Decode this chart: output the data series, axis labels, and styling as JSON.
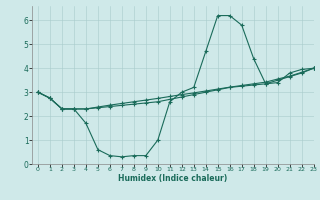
{
  "xlabel": "Humidex (Indice chaleur)",
  "ylabel": "",
  "bg_color": "#cfe9e9",
  "line_color": "#1a6b5a",
  "xlim": [
    -0.5,
    23
  ],
  "ylim": [
    0,
    6.6
  ],
  "xticks": [
    0,
    1,
    2,
    3,
    4,
    5,
    6,
    7,
    8,
    9,
    10,
    11,
    12,
    13,
    14,
    15,
    16,
    17,
    18,
    19,
    20,
    21,
    22,
    23
  ],
  "yticks": [
    0,
    1,
    2,
    3,
    4,
    5,
    6
  ],
  "series1_x": [
    0,
    1,
    2,
    3,
    4,
    5,
    6,
    7,
    8,
    9,
    10,
    11,
    12,
    13,
    14,
    15,
    16,
    17,
    18,
    19,
    20,
    21,
    22,
    23
  ],
  "series1_y": [
    3.0,
    2.75,
    2.3,
    2.3,
    1.7,
    0.6,
    0.35,
    0.3,
    0.35,
    0.35,
    1.0,
    2.6,
    3.0,
    3.2,
    4.7,
    6.2,
    6.2,
    5.8,
    4.4,
    3.35,
    3.4,
    3.8,
    3.95,
    4.0
  ],
  "series2_x": [
    0,
    1,
    2,
    3,
    4,
    5,
    6,
    7,
    8,
    9,
    10,
    11,
    12,
    13,
    14,
    15,
    16,
    17,
    18,
    19,
    20,
    21,
    22,
    23
  ],
  "series2_y": [
    3.0,
    2.75,
    2.3,
    2.3,
    2.3,
    2.35,
    2.4,
    2.45,
    2.5,
    2.55,
    2.6,
    2.7,
    2.8,
    2.9,
    3.0,
    3.1,
    3.2,
    3.25,
    3.3,
    3.35,
    3.5,
    3.65,
    3.8,
    4.0
  ],
  "series3_x": [
    0,
    1,
    2,
    3,
    4,
    5,
    6,
    7,
    8,
    9,
    10,
    11,
    12,
    13,
    14,
    15,
    16,
    17,
    18,
    19,
    20,
    21,
    22,
    23
  ],
  "series3_y": [
    3.0,
    2.75,
    2.3,
    2.3,
    2.3,
    2.38,
    2.46,
    2.53,
    2.6,
    2.67,
    2.74,
    2.82,
    2.9,
    2.97,
    3.05,
    3.13,
    3.21,
    3.28,
    3.35,
    3.42,
    3.55,
    3.67,
    3.83,
    4.0
  ]
}
